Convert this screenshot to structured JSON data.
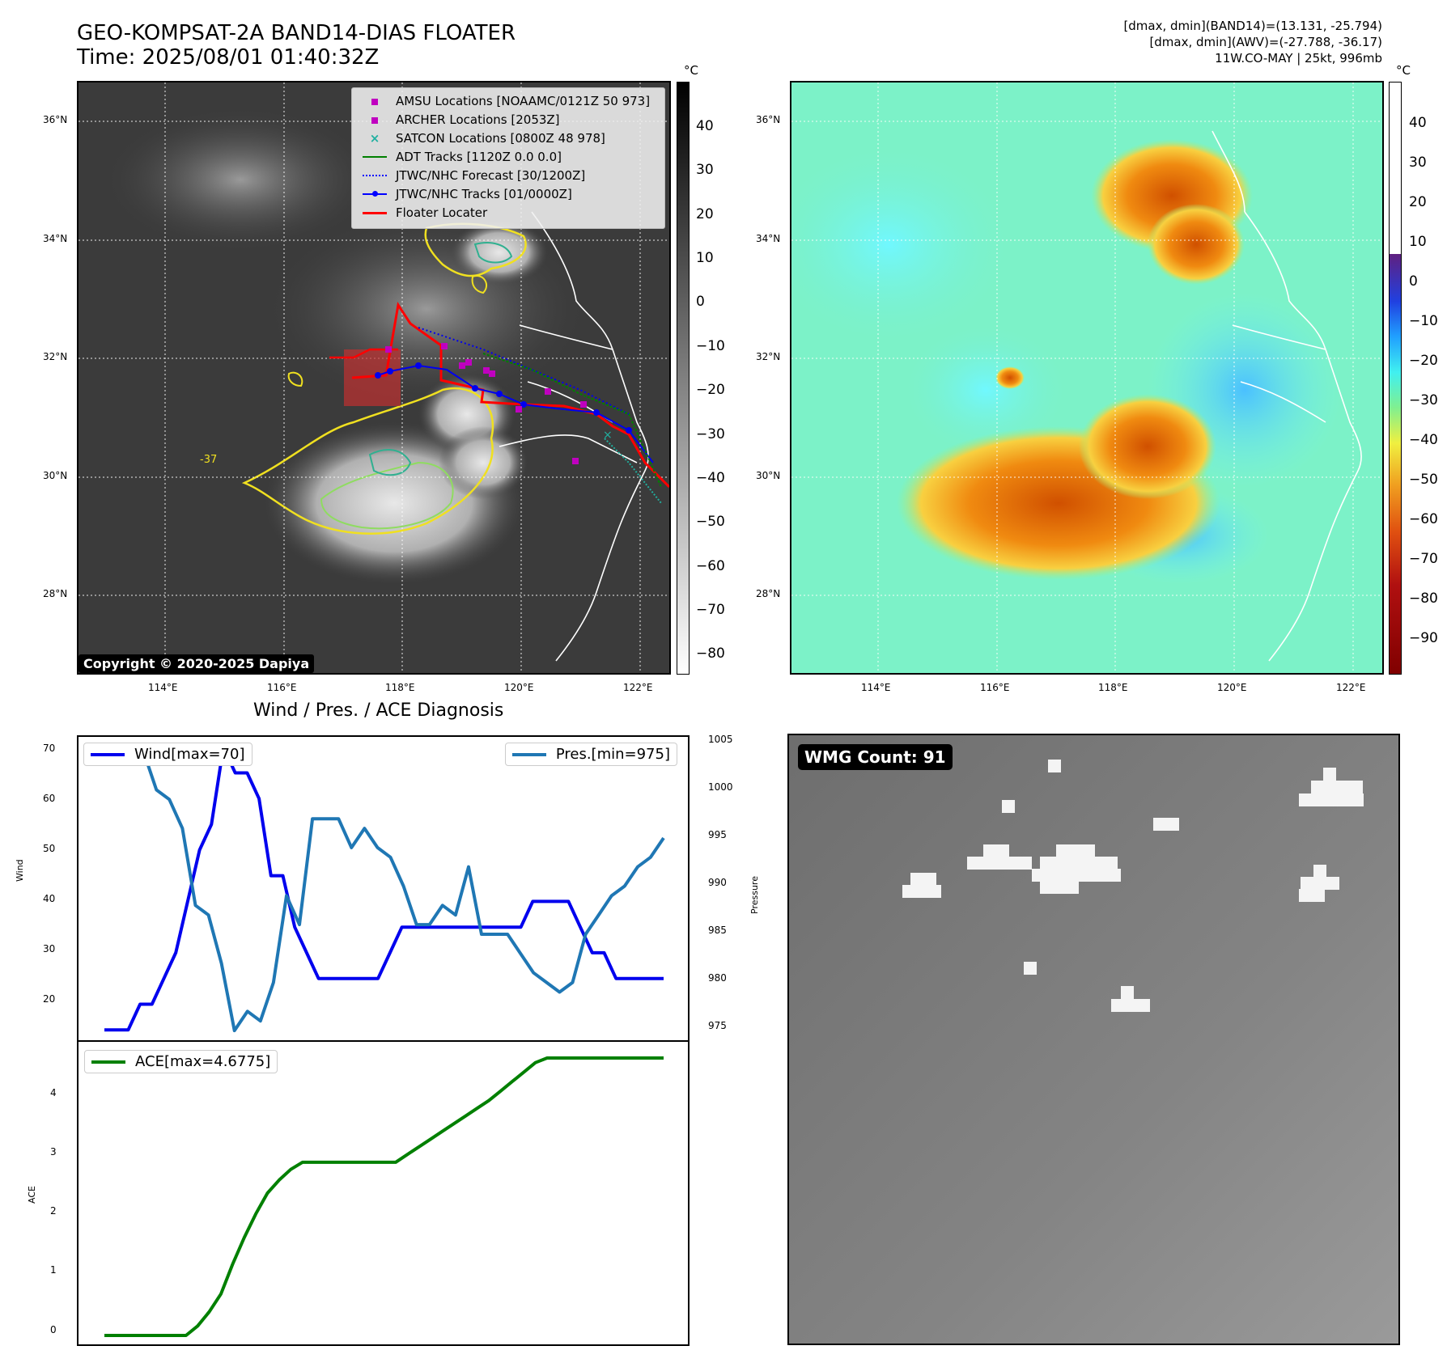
{
  "header": {
    "title_line1": "GEO-KOMPSAT-2A BAND14-DIAS FLOATER",
    "title_line2": "Time: 2025/08/01 01:40:32Z",
    "stats_line1": "[dmax, dmin](BAND14)=(13.131, -25.794)",
    "stats_line2": "[dmax, dmin](AWV)=(-27.788, -36.17)",
    "stats_line3": "11W.CO-MAY | 25kt, 996mb"
  },
  "map": {
    "lat_ticks": [
      "36°N",
      "34°N",
      "32°N",
      "30°N",
      "28°N"
    ],
    "lon_ticks": [
      "114°E",
      "116°E",
      "118°E",
      "120°E",
      "122°E"
    ],
    "contour_label": "-37",
    "copyright": "Copyright © 2020-2025 Dapiya",
    "legend": [
      {
        "label": "AMSU Locations [NOAAMC/0121Z 50 973]",
        "symbol": "square",
        "color": "#c000c0"
      },
      {
        "label": "ARCHER Locations [2053Z]",
        "symbol": "square",
        "color": "#c000c0"
      },
      {
        "label": "SATCON Locations [0800Z 48 978]",
        "symbol": "x",
        "color": "#20b0a0"
      },
      {
        "label": "ADT Tracks [1120Z 0.0 0.0]",
        "symbol": "line",
        "color": "#008000"
      },
      {
        "label": "JTWC/NHC Forecast [30/1200Z]",
        "symbol": "dotted",
        "color": "#0000ff"
      },
      {
        "label": "JTWC/NHC Tracks [01/0000Z]",
        "symbol": "line-dot",
        "color": "#0000ff"
      },
      {
        "label": "Floater Locater",
        "symbol": "line",
        "color": "#ff0000"
      }
    ]
  },
  "colorbar_ir": {
    "unit": "°C",
    "ticks": [
      "40",
      "30",
      "20",
      "10",
      "0",
      "−10",
      "−20",
      "−30",
      "−40",
      "−50",
      "−60",
      "−70",
      "−80"
    ]
  },
  "colorbar_wv": {
    "unit": "°C",
    "ticks": [
      "40",
      "30",
      "20",
      "10",
      "0",
      "−10",
      "−20",
      "−30",
      "−40",
      "−50",
      "−60",
      "−70",
      "−80",
      "−90"
    ]
  },
  "diagnosis": {
    "title": "Wind / Pres. / ACE Diagnosis",
    "wind_ylabel": "Wind",
    "pres_ylabel": "Pressure",
    "ace_ylabel": "ACE",
    "wind_legend": "Wind[max=70]",
    "pres_legend": "Pres.[min=975]",
    "ace_legend": "ACE[max=4.6775]",
    "wind_ticks": [
      "70",
      "60",
      "50",
      "40",
      "30",
      "20"
    ],
    "pres_ticks": [
      "1005",
      "1000",
      "995",
      "990",
      "985",
      "980",
      "975"
    ],
    "ace_ticks": [
      "4",
      "3",
      "2",
      "1",
      "0"
    ]
  },
  "wmg": {
    "label": "WMG Count: 91"
  },
  "chart_data": [
    {
      "type": "line",
      "title": "Wind / Pres. / ACE Diagnosis",
      "ylabel": "Wind",
      "ylim": [
        13,
        72
      ],
      "series": [
        {
          "name": "Wind[max=70]",
          "color": "#0000ee",
          "values": [
            15,
            15,
            15,
            20,
            20,
            25,
            30,
            40,
            50,
            55,
            70,
            65,
            65,
            60,
            45,
            45,
            35,
            30,
            25,
            25,
            25,
            25,
            25,
            25,
            30,
            35,
            35,
            35,
            35,
            35,
            35,
            35,
            35,
            35,
            35,
            35,
            40,
            40,
            40,
            40,
            35,
            30,
            30,
            25,
            25,
            25,
            25,
            25
          ]
        }
      ]
    },
    {
      "type": "line",
      "ylabel": "Pressure",
      "ylim": [
        974,
        1005.5
      ],
      "series": [
        {
          "name": "Pres.[min=975]",
          "color": "#1f77b4",
          "values": [
            1004,
            1004,
            1004,
            1004,
            1000,
            999,
            996,
            988,
            987,
            982,
            975,
            977,
            976,
            980,
            989,
            986,
            997,
            997,
            997,
            994,
            996,
            994,
            993,
            990,
            986,
            986,
            988,
            987,
            992,
            985,
            985,
            985,
            983,
            981,
            980,
            979,
            980,
            985,
            987,
            989,
            990,
            992,
            993,
            995
          ]
        }
      ]
    },
    {
      "type": "area",
      "ylabel": "ACE",
      "ylim": [
        -0.15,
        4.95
      ],
      "series": [
        {
          "name": "ACE[max=4.6775]",
          "color": "#008000",
          "values": [
            0,
            0,
            0,
            0,
            0,
            0,
            0,
            0,
            0.16,
            0.4,
            0.7,
            1.2,
            1.65,
            2.05,
            2.4,
            2.62,
            2.8,
            2.92,
            2.92,
            2.92,
            2.92,
            2.92,
            2.92,
            2.92,
            2.92,
            2.92,
            3.05,
            3.18,
            3.31,
            3.44,
            3.57,
            3.7,
            3.83,
            3.96,
            4.12,
            4.28,
            4.44,
            4.6,
            4.6775,
            4.6775,
            4.6775,
            4.6775,
            4.6775,
            4.6775,
            4.6775,
            4.6775,
            4.6775,
            4.6775,
            4.6775
          ]
        }
      ]
    }
  ]
}
